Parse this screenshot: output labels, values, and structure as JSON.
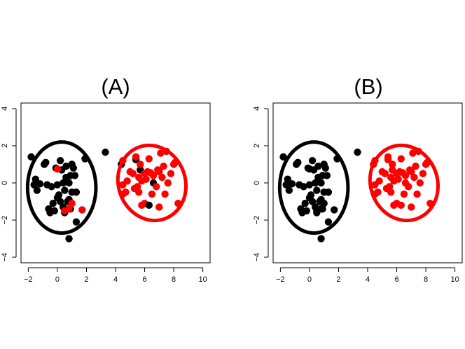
{
  "chart_data": [
    {
      "type": "scatter",
      "title": "(A)",
      "xlabel": "",
      "ylabel": "",
      "xlim": [
        -2.5,
        10.5
      ],
      "ylim": [
        -4.3,
        4.3
      ],
      "xticks": [
        -2,
        0,
        2,
        4,
        6,
        8,
        10
      ],
      "yticks": [
        -4,
        -2,
        0,
        2,
        4
      ],
      "grid": false,
      "legend": "none",
      "colors": {
        "cluster1": "#000000",
        "cluster2": "#ff0000"
      },
      "ellipses": [
        {
          "color": "#000000",
          "cx": 0.3,
          "cy": -0.25,
          "rx": 2.35,
          "ry": 2.45,
          "angle": 0
        },
        {
          "color": "#ff0000",
          "cx": 6.5,
          "cy": 0.0,
          "rx": 2.3,
          "ry": 2.05,
          "angle": 20
        }
      ],
      "points": [
        {
          "x": -1.8,
          "y": 1.4,
          "c": "#000000"
        },
        {
          "x": -1.6,
          "y": -0.1,
          "c": "#000000"
        },
        {
          "x": -1.5,
          "y": 0.2,
          "c": "#000000"
        },
        {
          "x": -1.4,
          "y": -0.4,
          "c": "#000000"
        },
        {
          "x": -1.2,
          "y": -0.05,
          "c": "#000000"
        },
        {
          "x": -0.9,
          "y": 1.0,
          "c": "#000000"
        },
        {
          "x": -0.8,
          "y": 1.1,
          "c": "#000000"
        },
        {
          "x": -0.7,
          "y": -0.1,
          "c": "#000000"
        },
        {
          "x": -0.6,
          "y": -1.4,
          "c": "#000000"
        },
        {
          "x": -0.5,
          "y": -1.6,
          "c": "#000000"
        },
        {
          "x": -0.4,
          "y": -0.2,
          "c": "#000000"
        },
        {
          "x": -0.3,
          "y": -1.1,
          "c": "#000000"
        },
        {
          "x": -0.2,
          "y": -1.5,
          "c": "#000000"
        },
        {
          "x": -0.1,
          "y": 0.8,
          "c": "#000000"
        },
        {
          "x": 0.0,
          "y": -0.1,
          "c": "#000000"
        },
        {
          "x": 0.0,
          "y": -0.8,
          "c": "#000000"
        },
        {
          "x": 0.1,
          "y": -0.65,
          "c": "#000000"
        },
        {
          "x": 0.2,
          "y": 1.2,
          "c": "#000000"
        },
        {
          "x": 0.2,
          "y": -1.0,
          "c": "#000000"
        },
        {
          "x": 0.3,
          "y": 0.7,
          "c": "#000000"
        },
        {
          "x": 0.4,
          "y": 0.0,
          "c": "#000000"
        },
        {
          "x": 0.4,
          "y": -1.3,
          "c": "#000000"
        },
        {
          "x": 0.5,
          "y": -0.4,
          "c": "#000000"
        },
        {
          "x": 0.5,
          "y": -1.6,
          "c": "#000000"
        },
        {
          "x": 0.6,
          "y": 0.3,
          "c": "#000000"
        },
        {
          "x": 0.6,
          "y": 0.9,
          "c": "#000000"
        },
        {
          "x": 0.7,
          "y": -1.0,
          "c": "#000000"
        },
        {
          "x": 0.8,
          "y": 0.0,
          "c": "#000000"
        },
        {
          "x": 0.8,
          "y": -0.9,
          "c": "#000000"
        },
        {
          "x": 0.9,
          "y": -1.4,
          "c": "#000000"
        },
        {
          "x": 0.9,
          "y": 0.4,
          "c": "#000000"
        },
        {
          "x": 1.0,
          "y": 1.0,
          "c": "#000000"
        },
        {
          "x": 1.0,
          "y": -0.5,
          "c": "#000000"
        },
        {
          "x": 1.1,
          "y": 0.8,
          "c": "#000000"
        },
        {
          "x": 1.2,
          "y": 0.4,
          "c": "#000000"
        },
        {
          "x": 1.3,
          "y": -0.5,
          "c": "#000000"
        },
        {
          "x": 1.3,
          "y": -2.1,
          "c": "#000000"
        },
        {
          "x": 0.8,
          "y": -3.0,
          "c": "#000000"
        },
        {
          "x": 1.9,
          "y": 1.3,
          "c": "#000000"
        },
        {
          "x": 3.3,
          "y": 1.65,
          "c": "#000000"
        },
        {
          "x": 0.0,
          "y": 0.75,
          "c": "#ff0000"
        },
        {
          "x": 0.5,
          "y": -1.5,
          "c": "#ff0000"
        },
        {
          "x": 0.8,
          "y": -1.4,
          "c": "#ff0000"
        },
        {
          "x": 1.0,
          "y": -1.1,
          "c": "#ff0000"
        },
        {
          "x": 1.7,
          "y": -1.45,
          "c": "#ff0000"
        },
        {
          "x": 4.4,
          "y": 1.0,
          "c": "#000000"
        },
        {
          "x": 4.5,
          "y": 1.2,
          "c": "#ff0000"
        },
        {
          "x": 4.5,
          "y": -0.1,
          "c": "#ff0000"
        },
        {
          "x": 4.5,
          "y": -0.6,
          "c": "#ff0000"
        },
        {
          "x": 4.7,
          "y": -0.5,
          "c": "#ff0000"
        },
        {
          "x": 4.8,
          "y": 0.1,
          "c": "#ff0000"
        },
        {
          "x": 5.0,
          "y": 0.6,
          "c": "#ff0000"
        },
        {
          "x": 5.2,
          "y": 0.5,
          "c": "#ff0000"
        },
        {
          "x": 5.3,
          "y": -0.3,
          "c": "#ff0000"
        },
        {
          "x": 5.4,
          "y": 1.25,
          "c": "#000000"
        },
        {
          "x": 5.4,
          "y": 1.4,
          "c": "#ff0000"
        },
        {
          "x": 5.5,
          "y": -0.2,
          "c": "#ff0000"
        },
        {
          "x": 5.6,
          "y": 0.3,
          "c": "#ff0000"
        },
        {
          "x": 5.6,
          "y": -0.5,
          "c": "#ff0000"
        },
        {
          "x": 5.7,
          "y": 0.7,
          "c": "#000000"
        },
        {
          "x": 5.7,
          "y": 1.0,
          "c": "#ff0000"
        },
        {
          "x": 5.8,
          "y": 0.1,
          "c": "#ff0000"
        },
        {
          "x": 5.8,
          "y": -1.2,
          "c": "#ff0000"
        },
        {
          "x": 6.0,
          "y": -1.1,
          "c": "#ff0000"
        },
        {
          "x": 6.0,
          "y": 0.5,
          "c": "#ff0000"
        },
        {
          "x": 6.1,
          "y": 0.2,
          "c": "#ff0000"
        },
        {
          "x": 6.2,
          "y": 0.6,
          "c": "#ff0000"
        },
        {
          "x": 6.3,
          "y": -1.2,
          "c": "#000000"
        },
        {
          "x": 6.3,
          "y": 1.3,
          "c": "#ff0000"
        },
        {
          "x": 6.4,
          "y": 0.55,
          "c": "#ff0000"
        },
        {
          "x": 6.5,
          "y": -0.6,
          "c": "#ff0000"
        },
        {
          "x": 6.6,
          "y": 0.0,
          "c": "#000000"
        },
        {
          "x": 6.6,
          "y": 0.4,
          "c": "#ff0000"
        },
        {
          "x": 6.8,
          "y": -0.2,
          "c": "#ff0000"
        },
        {
          "x": 6.9,
          "y": 0.7,
          "c": "#ff0000"
        },
        {
          "x": 7.0,
          "y": 0.6,
          "c": "#ff0000"
        },
        {
          "x": 7.1,
          "y": 1.6,
          "c": "#ff0000"
        },
        {
          "x": 7.2,
          "y": 0.3,
          "c": "#ff0000"
        },
        {
          "x": 7.3,
          "y": 0.9,
          "c": "#ff0000"
        },
        {
          "x": 7.4,
          "y": -0.6,
          "c": "#ff0000"
        },
        {
          "x": 7.5,
          "y": 1.7,
          "c": "#ff0000"
        },
        {
          "x": 7.6,
          "y": 0.0,
          "c": "#ff0000"
        },
        {
          "x": 7.8,
          "y": 0.5,
          "c": "#ff0000"
        },
        {
          "x": 8.0,
          "y": 1.0,
          "c": "#ff0000"
        },
        {
          "x": 8.1,
          "y": 1.1,
          "c": "#ff0000"
        },
        {
          "x": 8.3,
          "y": -1.1,
          "c": "#ff0000"
        },
        {
          "x": 7.0,
          "y": -1.3,
          "c": "#ff0000"
        }
      ]
    },
    {
      "type": "scatter",
      "title": "(B)",
      "xlabel": "",
      "ylabel": "",
      "xlim": [
        -2.5,
        10.5
      ],
      "ylim": [
        -4.3,
        4.3
      ],
      "xticks": [
        -2,
        0,
        2,
        4,
        6,
        8,
        10
      ],
      "yticks": [
        -4,
        -2,
        0,
        2,
        4
      ],
      "grid": false,
      "legend": "none",
      "colors": {
        "cluster1": "#000000",
        "cluster2": "#ff0000"
      },
      "ellipses": [
        {
          "color": "#000000",
          "cx": 0.3,
          "cy": -0.25,
          "rx": 2.35,
          "ry": 2.45,
          "angle": 0
        },
        {
          "color": "#ff0000",
          "cx": 6.5,
          "cy": 0.0,
          "rx": 2.3,
          "ry": 2.05,
          "angle": 20
        }
      ],
      "points": [
        {
          "x": -1.8,
          "y": 1.4,
          "c": "#000000"
        },
        {
          "x": -1.6,
          "y": -0.1,
          "c": "#000000"
        },
        {
          "x": -1.5,
          "y": 0.2,
          "c": "#000000"
        },
        {
          "x": -1.4,
          "y": -0.4,
          "c": "#000000"
        },
        {
          "x": -1.2,
          "y": -0.05,
          "c": "#000000"
        },
        {
          "x": -0.9,
          "y": 1.0,
          "c": "#000000"
        },
        {
          "x": -0.8,
          "y": 1.1,
          "c": "#000000"
        },
        {
          "x": -0.7,
          "y": -0.1,
          "c": "#000000"
        },
        {
          "x": -0.6,
          "y": -1.4,
          "c": "#000000"
        },
        {
          "x": -0.5,
          "y": -1.6,
          "c": "#000000"
        },
        {
          "x": -0.4,
          "y": -0.2,
          "c": "#000000"
        },
        {
          "x": -0.3,
          "y": -1.1,
          "c": "#000000"
        },
        {
          "x": -0.2,
          "y": -1.5,
          "c": "#000000"
        },
        {
          "x": -0.1,
          "y": 0.8,
          "c": "#000000"
        },
        {
          "x": 0.0,
          "y": -0.1,
          "c": "#000000"
        },
        {
          "x": 0.0,
          "y": -0.8,
          "c": "#000000"
        },
        {
          "x": 0.1,
          "y": -0.65,
          "c": "#000000"
        },
        {
          "x": 0.2,
          "y": 1.2,
          "c": "#000000"
        },
        {
          "x": 0.2,
          "y": -1.0,
          "c": "#000000"
        },
        {
          "x": 0.3,
          "y": 0.7,
          "c": "#000000"
        },
        {
          "x": 0.4,
          "y": 0.0,
          "c": "#000000"
        },
        {
          "x": 0.4,
          "y": -1.3,
          "c": "#000000"
        },
        {
          "x": 0.5,
          "y": -0.4,
          "c": "#000000"
        },
        {
          "x": 0.5,
          "y": -1.6,
          "c": "#000000"
        },
        {
          "x": 0.6,
          "y": 0.3,
          "c": "#000000"
        },
        {
          "x": 0.6,
          "y": 0.9,
          "c": "#000000"
        },
        {
          "x": 0.7,
          "y": -1.0,
          "c": "#000000"
        },
        {
          "x": 0.8,
          "y": 0.0,
          "c": "#000000"
        },
        {
          "x": 0.8,
          "y": -0.9,
          "c": "#000000"
        },
        {
          "x": 0.9,
          "y": -1.4,
          "c": "#000000"
        },
        {
          "x": 0.9,
          "y": 0.4,
          "c": "#000000"
        },
        {
          "x": 1.0,
          "y": 1.0,
          "c": "#000000"
        },
        {
          "x": 1.0,
          "y": -0.5,
          "c": "#000000"
        },
        {
          "x": 1.1,
          "y": 0.8,
          "c": "#000000"
        },
        {
          "x": 1.2,
          "y": 0.4,
          "c": "#000000"
        },
        {
          "x": 1.3,
          "y": -0.5,
          "c": "#000000"
        },
        {
          "x": 1.3,
          "y": -2.1,
          "c": "#000000"
        },
        {
          "x": 0.8,
          "y": -3.0,
          "c": "#000000"
        },
        {
          "x": 1.9,
          "y": 1.3,
          "c": "#000000"
        },
        {
          "x": 3.3,
          "y": 1.65,
          "c": "#000000"
        },
        {
          "x": 0.0,
          "y": 0.75,
          "c": "#000000"
        },
        {
          "x": 0.5,
          "y": -1.5,
          "c": "#000000"
        },
        {
          "x": 0.8,
          "y": -1.4,
          "c": "#000000"
        },
        {
          "x": 1.0,
          "y": -1.1,
          "c": "#000000"
        },
        {
          "x": 1.7,
          "y": -1.45,
          "c": "#000000"
        },
        {
          "x": 4.4,
          "y": 1.0,
          "c": "#ff0000"
        },
        {
          "x": 4.5,
          "y": 1.2,
          "c": "#ff0000"
        },
        {
          "x": 4.5,
          "y": -0.1,
          "c": "#ff0000"
        },
        {
          "x": 4.5,
          "y": -0.6,
          "c": "#ff0000"
        },
        {
          "x": 4.7,
          "y": -0.5,
          "c": "#ff0000"
        },
        {
          "x": 4.8,
          "y": 0.1,
          "c": "#ff0000"
        },
        {
          "x": 5.0,
          "y": 0.6,
          "c": "#ff0000"
        },
        {
          "x": 5.2,
          "y": 0.5,
          "c": "#ff0000"
        },
        {
          "x": 5.3,
          "y": -0.3,
          "c": "#ff0000"
        },
        {
          "x": 5.4,
          "y": 1.25,
          "c": "#ff0000"
        },
        {
          "x": 5.4,
          "y": 1.4,
          "c": "#ff0000"
        },
        {
          "x": 5.5,
          "y": -0.2,
          "c": "#ff0000"
        },
        {
          "x": 5.6,
          "y": 0.3,
          "c": "#ff0000"
        },
        {
          "x": 5.6,
          "y": -0.5,
          "c": "#ff0000"
        },
        {
          "x": 5.7,
          "y": 0.7,
          "c": "#ff0000"
        },
        {
          "x": 5.7,
          "y": 1.0,
          "c": "#ff0000"
        },
        {
          "x": 5.8,
          "y": 0.1,
          "c": "#ff0000"
        },
        {
          "x": 5.8,
          "y": -1.2,
          "c": "#ff0000"
        },
        {
          "x": 6.0,
          "y": -1.1,
          "c": "#ff0000"
        },
        {
          "x": 6.0,
          "y": 0.5,
          "c": "#ff0000"
        },
        {
          "x": 6.1,
          "y": 0.2,
          "c": "#ff0000"
        },
        {
          "x": 6.2,
          "y": 0.6,
          "c": "#ff0000"
        },
        {
          "x": 6.3,
          "y": -1.2,
          "c": "#ff0000"
        },
        {
          "x": 6.3,
          "y": 1.3,
          "c": "#ff0000"
        },
        {
          "x": 6.4,
          "y": 0.55,
          "c": "#ff0000"
        },
        {
          "x": 6.5,
          "y": -0.6,
          "c": "#ff0000"
        },
        {
          "x": 6.6,
          "y": 0.0,
          "c": "#ff0000"
        },
        {
          "x": 6.6,
          "y": 0.4,
          "c": "#ff0000"
        },
        {
          "x": 6.8,
          "y": -0.2,
          "c": "#ff0000"
        },
        {
          "x": 6.9,
          "y": 0.7,
          "c": "#ff0000"
        },
        {
          "x": 7.0,
          "y": 0.6,
          "c": "#ff0000"
        },
        {
          "x": 7.1,
          "y": 1.6,
          "c": "#ff0000"
        },
        {
          "x": 7.2,
          "y": 0.3,
          "c": "#ff0000"
        },
        {
          "x": 7.3,
          "y": 0.9,
          "c": "#ff0000"
        },
        {
          "x": 7.4,
          "y": -0.6,
          "c": "#ff0000"
        },
        {
          "x": 7.5,
          "y": 1.7,
          "c": "#ff0000"
        },
        {
          "x": 7.6,
          "y": 0.0,
          "c": "#ff0000"
        },
        {
          "x": 7.8,
          "y": 0.5,
          "c": "#ff0000"
        },
        {
          "x": 8.0,
          "y": 1.0,
          "c": "#ff0000"
        },
        {
          "x": 8.1,
          "y": 1.1,
          "c": "#ff0000"
        },
        {
          "x": 8.3,
          "y": -1.1,
          "c": "#ff0000"
        },
        {
          "x": 7.0,
          "y": -1.3,
          "c": "#ff0000"
        }
      ]
    }
  ]
}
